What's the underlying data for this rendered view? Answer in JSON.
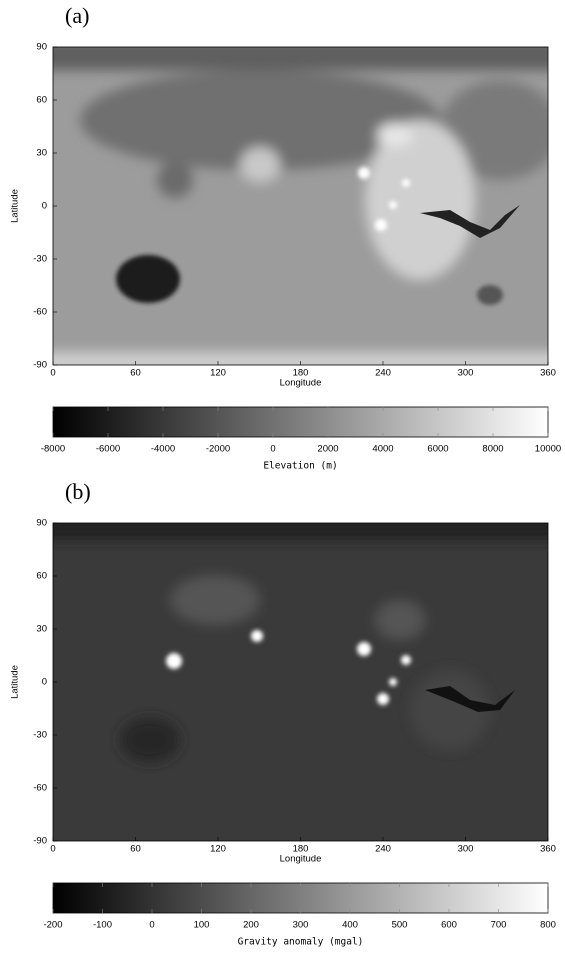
{
  "chart_data": [
    {
      "type": "heatmap",
      "panel_label": "(a)",
      "xlabel": "Longitude",
      "ylabel": "Latitude",
      "xlim": [
        0,
        360
      ],
      "xticks": [
        0,
        60,
        120,
        180,
        240,
        300,
        360
      ],
      "ylim": [
        -90,
        90
      ],
      "yticks": [
        -90,
        -60,
        -30,
        0,
        30,
        60,
        90
      ],
      "cmap": "gray",
      "colorbar": {
        "label": "Elevation (m)",
        "lim": [
          -8000,
          10000
        ],
        "ticks": [
          -8000,
          -6000,
          -4000,
          -2000,
          0,
          2000,
          4000,
          6000,
          8000,
          10000
        ]
      }
    },
    {
      "type": "heatmap",
      "panel_label": "(b)",
      "xlabel": "Longitude",
      "ylabel": "Latitude",
      "xlim": [
        0,
        360
      ],
      "xticks": [
        0,
        60,
        120,
        180,
        240,
        300,
        360
      ],
      "ylim": [
        -90,
        90
      ],
      "yticks": [
        -90,
        -60,
        -30,
        0,
        30,
        60,
        90
      ],
      "cmap": "gray",
      "colorbar": {
        "label": "Gravity anomaly (mgal)",
        "lim": [
          -200,
          800
        ],
        "ticks": [
          -200,
          -100,
          0,
          100,
          200,
          300,
          400,
          500,
          600,
          700,
          800
        ]
      }
    }
  ]
}
